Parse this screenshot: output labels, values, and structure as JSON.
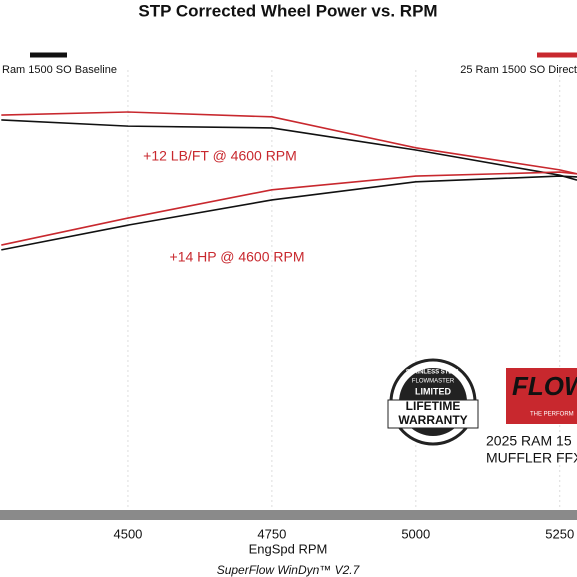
{
  "chart_data": {
    "type": "line",
    "title": "STP Corrected Wheel Power vs. RPM",
    "xlabel": "EngSpd  RPM",
    "footer": "SuperFlow WinDyn™ V2.7",
    "x": [
      4280,
      4500,
      4750,
      5000,
      5250,
      5280
    ],
    "xlim": [
      4280,
      5280
    ],
    "xticks": [
      4500,
      4750,
      5000,
      5250
    ],
    "ylim": [
      0,
      100
    ],
    "grid": true,
    "series": [
      {
        "name": "Ram 1500 SO Baseline",
        "color": "#111111",
        "torque": [
          88.7,
          87.3,
          86.9,
          81.9,
          76.2,
          75.1
        ],
        "hp": [
          59.3,
          64.9,
          70.6,
          74.7,
          76.0,
          75.8
        ]
      },
      {
        "name": "25 Ram 1500 SO Direct",
        "color": "#c8282e",
        "torque": [
          89.8,
          90.5,
          89.4,
          82.4,
          77.4,
          76.5
        ],
        "hp": [
          60.4,
          66.5,
          72.9,
          76.0,
          76.9,
          76.5
        ]
      }
    ],
    "annotations": [
      "+12 LB/FT @ 4600 RPM",
      "+14 HP @ 4600 RPM"
    ],
    "badge": {
      "top": "STAINLESS STEEL",
      "brand": "FLOWMASTER",
      "limited": "LIMITED",
      "line1": "LIFETIME",
      "line2": "WARRANTY"
    },
    "logo": {
      "brand": "FLOW",
      "tagline": "THE PERFORM"
    },
    "product": [
      "2025 RAM 15",
      "MUFFLER FFX"
    ]
  }
}
